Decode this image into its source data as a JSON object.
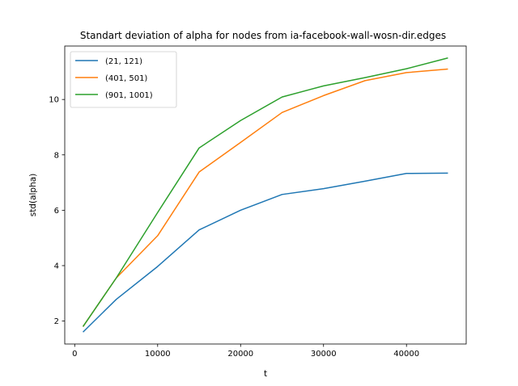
{
  "chart_data": {
    "type": "line",
    "title": "Standart deviation of alpha for nodes from ia-facebook-wall-wosn-dir.edges",
    "xlabel": "t",
    "ylabel": "std(alpha)",
    "xlim": [
      -1200,
      47200
    ],
    "ylim": [
      1.17,
      11.93
    ],
    "xticks": [
      0,
      10000,
      20000,
      30000,
      40000
    ],
    "yticks": [
      2,
      4,
      6,
      8,
      10
    ],
    "grid": false,
    "legend_position": "top-left",
    "series": [
      {
        "name": "(21, 121)",
        "color": "#1f77b4",
        "x": [
          1000,
          5000,
          10000,
          15000,
          20000,
          25000,
          30000,
          35000,
          40000,
          45000
        ],
        "y": [
          1.6,
          2.78,
          3.97,
          5.29,
          6.0,
          6.57,
          6.78,
          7.05,
          7.33,
          7.34
        ]
      },
      {
        "name": "(401, 501)",
        "color": "#ff7f0e",
        "x": [
          1000,
          5000,
          10000,
          15000,
          20000,
          25000,
          30000,
          35000,
          40000,
          45000
        ],
        "y": [
          1.8,
          3.55,
          5.08,
          7.38,
          8.45,
          9.53,
          10.14,
          10.68,
          10.97,
          11.1
        ]
      },
      {
        "name": "(901, 1001)",
        "color": "#2ca02c",
        "x": [
          1000,
          5000,
          10000,
          15000,
          20000,
          25000,
          30000,
          35000,
          40000,
          45000
        ],
        "y": [
          1.8,
          3.55,
          5.92,
          8.25,
          9.24,
          10.09,
          10.49,
          10.79,
          11.11,
          11.5
        ]
      }
    ]
  }
}
